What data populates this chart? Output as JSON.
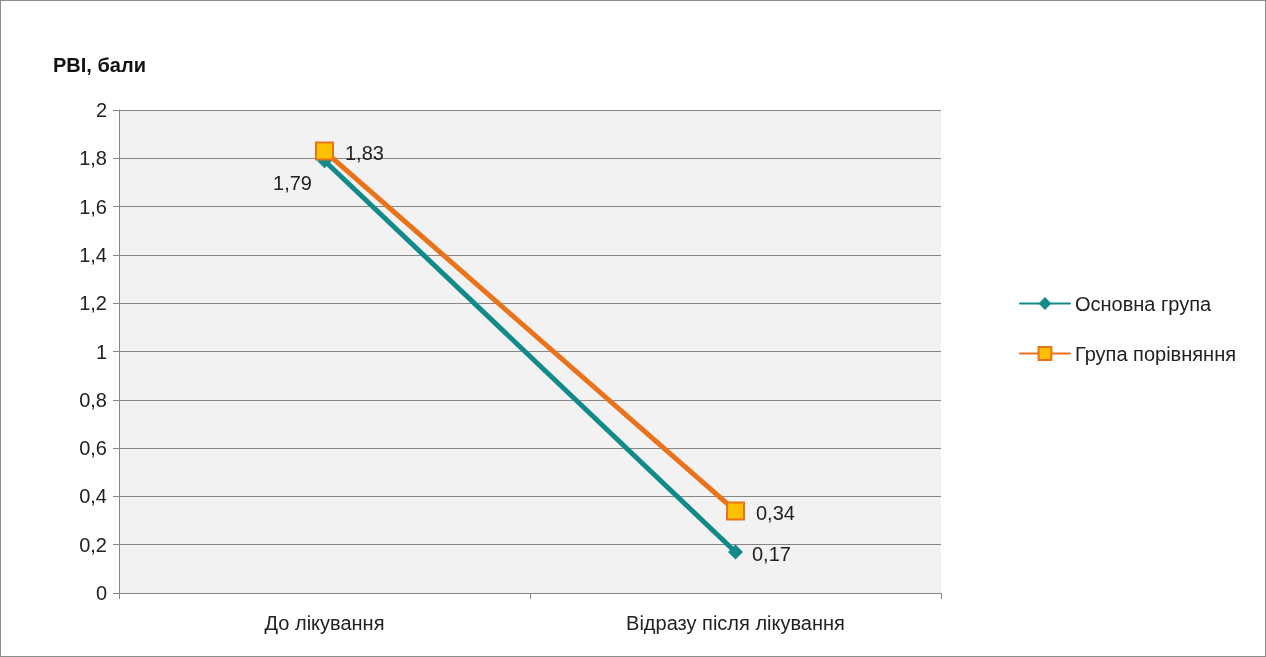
{
  "chart_data": {
    "type": "line",
    "ylabel": "PBI, бали",
    "categories": [
      "До лікування",
      "Відразу після лікування"
    ],
    "series": [
      {
        "name": "Основна група",
        "color": "#138a8a",
        "marker": "diamond",
        "values": [
          1.79,
          0.17
        ],
        "value_labels": [
          "1,79",
          "0,17"
        ]
      },
      {
        "name": "Група порівняння",
        "color": "#e8731a",
        "marker": "square",
        "values": [
          1.83,
          0.34
        ],
        "value_labels": [
          "1,83",
          "0,34"
        ]
      }
    ],
    "ylim": [
      0,
      2
    ],
    "yticks": [
      0,
      {
        "value": 0.2,
        "label": "0,2"
      },
      {
        "value": 0.4,
        "label": "0,4"
      },
      {
        "value": 0.6,
        "label": "0,6"
      },
      {
        "value": 0.8,
        "label": "0,8"
      },
      1,
      {
        "value": 1.2,
        "label": "1,2"
      },
      {
        "value": 1.4,
        "label": "1,4"
      },
      {
        "value": 1.6,
        "label": "1,6"
      },
      {
        "value": 1.8,
        "label": "1,8"
      },
      2
    ],
    "grid": "y",
    "legend": "right",
    "line_style": "solid"
  }
}
